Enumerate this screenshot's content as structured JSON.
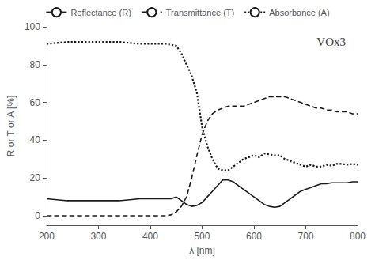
{
  "chart_data": {
    "type": "line",
    "title": "VOx3",
    "xlabel": "λ [nm]",
    "ylabel": "R or T or A [%]",
    "xlim": [
      200,
      800
    ],
    "ylim": [
      -5,
      100
    ],
    "xticks": [
      200,
      300,
      400,
      500,
      600,
      700,
      800
    ],
    "yticks": [
      0,
      20,
      40,
      60,
      80,
      100
    ],
    "grid": false,
    "legend": "upper center",
    "series": [
      {
        "name": "Reflectance (R)",
        "color": "#1a1a1a",
        "line_style": "solid",
        "x": [
          200,
          220,
          240,
          260,
          280,
          300,
          320,
          340,
          360,
          380,
          400,
          420,
          440,
          450,
          460,
          470,
          480,
          490,
          500,
          510,
          520,
          530,
          540,
          550,
          560,
          570,
          580,
          590,
          600,
          610,
          620,
          630,
          640,
          650,
          660,
          670,
          680,
          690,
          700,
          710,
          720,
          730,
          740,
          750,
          760,
          770,
          780,
          790,
          800
        ],
        "values": [
          9,
          8.5,
          8,
          8,
          8,
          8,
          8,
          8,
          8.5,
          9,
          9,
          9,
          9,
          10,
          8,
          6,
          5,
          5.5,
          7,
          10,
          13,
          16,
          19,
          19,
          18,
          16,
          14,
          12,
          10,
          8,
          6,
          5,
          4.5,
          5,
          7,
          9,
          11,
          13,
          14,
          15,
          16,
          17,
          17,
          17.5,
          17.5,
          17.5,
          17.5,
          18,
          18
        ]
      },
      {
        "name": "Transmittance (T)",
        "color": "#1a1a1a",
        "line_style": "dashed",
        "x": [
          200,
          220,
          240,
          260,
          280,
          300,
          320,
          340,
          360,
          380,
          400,
          420,
          430,
          440,
          450,
          460,
          470,
          480,
          490,
          500,
          510,
          520,
          530,
          540,
          550,
          560,
          570,
          580,
          590,
          600,
          610,
          620,
          630,
          640,
          650,
          660,
          670,
          680,
          690,
          700,
          710,
          720,
          730,
          740,
          750,
          760,
          770,
          780,
          790,
          800
        ],
        "values": [
          0,
          0,
          0,
          0,
          0,
          0,
          0,
          0,
          0,
          0,
          0,
          0,
          0,
          0.5,
          2,
          5,
          10,
          20,
          32,
          43,
          50,
          54,
          56,
          57,
          58,
          58,
          58,
          58,
          59,
          60,
          61,
          62,
          63,
          63,
          63,
          63,
          62,
          61,
          60,
          59,
          58,
          57,
          57,
          56,
          56,
          55,
          55,
          55,
          54,
          54
        ]
      },
      {
        "name": "Absorbance (A)",
        "color": "#1a1a1a",
        "line_style": "dotted",
        "x": [
          200,
          220,
          240,
          260,
          280,
          300,
          320,
          340,
          360,
          380,
          400,
          420,
          430,
          440,
          450,
          460,
          470,
          480,
          490,
          500,
          510,
          520,
          530,
          540,
          550,
          560,
          570,
          580,
          590,
          600,
          610,
          620,
          630,
          640,
          650,
          660,
          670,
          680,
          690,
          700,
          710,
          720,
          730,
          740,
          750,
          760,
          770,
          780,
          790,
          800
        ],
        "values": [
          91,
          91.5,
          92,
          92,
          92,
          92,
          92,
          92,
          91.5,
          91,
          91,
          91,
          91,
          90.5,
          90,
          86,
          80,
          74,
          65,
          47,
          37,
          30,
          25,
          24,
          24,
          26,
          28,
          30,
          31,
          32,
          31,
          33,
          32.5,
          32,
          32,
          30,
          29,
          28,
          27,
          26,
          27,
          26,
          26,
          27,
          26.5,
          27.5,
          27.5,
          27,
          27.5,
          27
        ]
      }
    ]
  }
}
